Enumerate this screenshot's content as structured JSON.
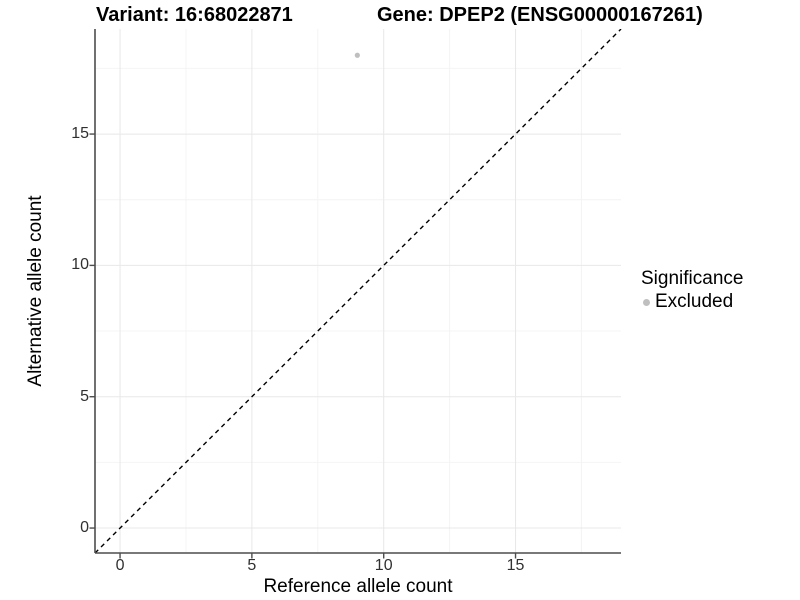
{
  "titles": {
    "variant": "Variant: 16:68022871",
    "gene": "Gene: DPEP2 (ENSG00000167261)"
  },
  "chart_data": {
    "type": "scatter",
    "title_left": "Variant: 16:68022871",
    "title_right": "Gene: DPEP2 (ENSG00000167261)",
    "xlabel": "Reference allele count",
    "ylabel": "Alternative allele count",
    "xlim": [
      -0.95,
      19.0
    ],
    "ylim": [
      -0.95,
      19.0
    ],
    "x_major_ticks": [
      0,
      5,
      10,
      15
    ],
    "x_minor_ticks": [
      2.5,
      7.5,
      12.5,
      17.5
    ],
    "y_major_ticks": [
      0,
      5,
      10,
      15
    ],
    "y_minor_ticks": [
      2.5,
      7.5,
      12.5,
      17.5
    ],
    "grid": true,
    "points": [
      {
        "x": 9,
        "y": 18,
        "series": "Excluded"
      }
    ],
    "identity_line": {
      "style": "dashed",
      "from": [
        -0.95,
        -0.95
      ],
      "to": [
        19.0,
        19.0
      ]
    },
    "legend": {
      "title": "Significance",
      "position": "right",
      "items": [
        {
          "label": "Excluded",
          "color": "#bfbfbf"
        }
      ]
    }
  },
  "colors": {
    "background": "#ffffff",
    "point": "#bfbfbf",
    "grid_major": "#e8e8e8",
    "grid_minor": "#f4f4f4",
    "axis_line": "#4d4d4d",
    "tick_mark": "#4d4d4d",
    "tick_label": "#303030",
    "text": "#000000",
    "dashed_line": "#000000"
  }
}
